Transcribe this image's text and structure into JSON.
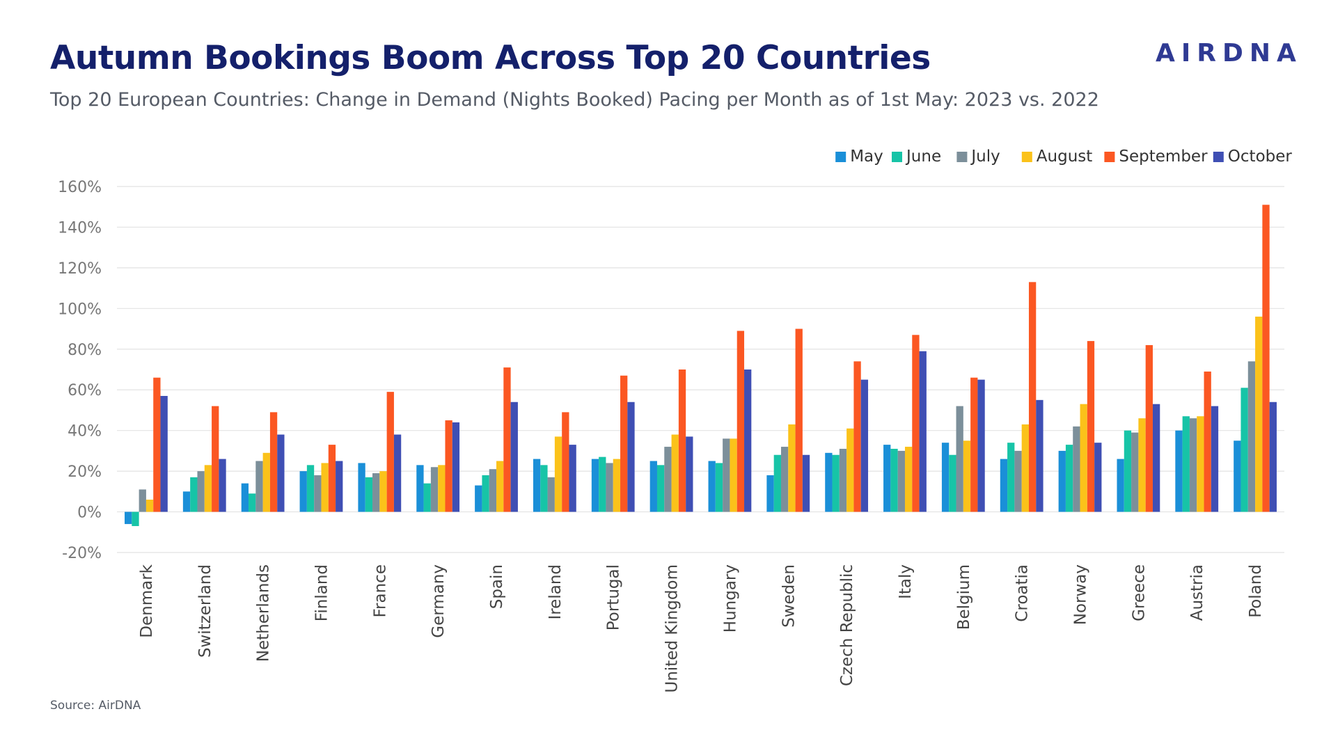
{
  "header": {
    "title": "Autumn Bookings Boom Across Top 20 Countries",
    "subtitle": "Top 20 European Countries: Change in Demand (Nights Booked) Pacing per Month as of 1st May: 2023 vs. 2022",
    "logo_text": "AIRDNA"
  },
  "footer": {
    "source": "Source: AirDNA"
  },
  "colors": {
    "May": "#1a8fd8",
    "June": "#17c4a7",
    "July": "#7c8f9a",
    "August": "#fbc21a",
    "September": "#fb5722",
    "October": "#3f4fb4",
    "grid": "#e2e2e2",
    "title": "#14206b"
  },
  "chart_data": {
    "type": "bar",
    "title": "Autumn Bookings Boom Across Top 20 Countries",
    "xlabel": "",
    "ylabel": "",
    "ylim": [
      -20,
      160
    ],
    "yticks": [
      -20,
      0,
      20,
      40,
      60,
      80,
      100,
      120,
      140,
      160
    ],
    "tick_format": "percent",
    "grid": true,
    "legend_position": "top-right",
    "categories": [
      "Denmark",
      "Switzerland",
      "Netherlands",
      "Finland",
      "France",
      "Germany",
      "Spain",
      "Ireland",
      "Portugal",
      "United Kingdom",
      "Hungary",
      "Sweden",
      "Czech Republic",
      "Italy",
      "Belgium",
      "Croatia",
      "Norway",
      "Greece",
      "Austria",
      "Poland"
    ],
    "series": [
      {
        "name": "May",
        "values": [
          -6,
          10,
          14,
          20,
          24,
          23,
          13,
          26,
          26,
          25,
          25,
          18,
          29,
          33,
          34,
          26,
          30,
          26,
          40,
          35
        ]
      },
      {
        "name": "June",
        "values": [
          -7,
          17,
          9,
          23,
          17,
          14,
          18,
          23,
          27,
          23,
          24,
          28,
          28,
          31,
          28,
          34,
          33,
          40,
          47,
          61
        ]
      },
      {
        "name": "July",
        "values": [
          11,
          20,
          25,
          18,
          19,
          22,
          21,
          17,
          24,
          32,
          36,
          32,
          31,
          30,
          52,
          30,
          42,
          39,
          46,
          74
        ]
      },
      {
        "name": "August",
        "values": [
          6,
          23,
          29,
          24,
          20,
          23,
          25,
          37,
          26,
          38,
          36,
          43,
          41,
          32,
          35,
          43,
          53,
          46,
          47,
          96
        ]
      },
      {
        "name": "September",
        "values": [
          66,
          52,
          49,
          33,
          59,
          45,
          71,
          49,
          67,
          70,
          89,
          90,
          74,
          87,
          66,
          113,
          84,
          82,
          69,
          151
        ]
      },
      {
        "name": "October",
        "values": [
          57,
          26,
          38,
          25,
          38,
          44,
          54,
          33,
          54,
          37,
          70,
          28,
          65,
          79,
          65,
          55,
          34,
          53,
          52,
          54
        ]
      }
    ]
  }
}
